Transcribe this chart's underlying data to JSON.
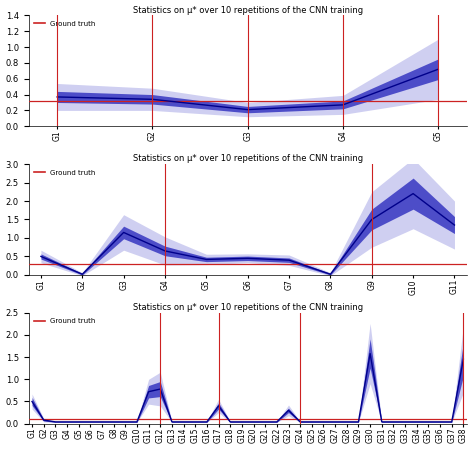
{
  "title": "Statistics on μ* over 10 repetitions of the CNN training",
  "legend_label": "Ground truth",
  "subplot1": {
    "x": [
      0,
      1,
      2,
      3,
      4
    ],
    "xtick_labels": [
      "G1",
      "G2",
      "G3",
      "G4",
      "G5"
    ],
    "mean": [
      0.37,
      0.34,
      0.21,
      0.27,
      0.72
    ],
    "std1": [
      0.07,
      0.06,
      0.04,
      0.05,
      0.13
    ],
    "std2": [
      0.17,
      0.14,
      0.09,
      0.12,
      0.38
    ],
    "ylim": [
      0.0,
      1.4
    ],
    "yticks": [
      0.0,
      0.2,
      0.4,
      0.6,
      0.8,
      1.0,
      1.2,
      1.4
    ],
    "vlines": [
      0,
      1,
      2,
      3,
      4
    ],
    "gt_value": 0.32
  },
  "subplot2": {
    "x": [
      0,
      1,
      2,
      3,
      4,
      5,
      6,
      7,
      8,
      9,
      10
    ],
    "xtick_labels": [
      "G1",
      "G2",
      "G3",
      "G4",
      "G5",
      "G6",
      "G7",
      "G8",
      "G9",
      "G10",
      "G11"
    ],
    "mean": [
      0.5,
      0.02,
      1.15,
      0.65,
      0.42,
      0.45,
      0.4,
      0.02,
      1.5,
      2.2,
      1.35
    ],
    "std1": [
      0.07,
      0.02,
      0.17,
      0.13,
      0.06,
      0.06,
      0.06,
      0.02,
      0.28,
      0.42,
      0.23
    ],
    "std2": [
      0.17,
      0.04,
      0.48,
      0.38,
      0.14,
      0.12,
      0.14,
      0.04,
      0.75,
      0.95,
      0.65
    ],
    "ylim": [
      0.0,
      3.0
    ],
    "yticks": [
      0.0,
      0.5,
      1.0,
      1.5,
      2.0,
      2.5,
      3.0
    ],
    "vlines": [
      3,
      8
    ],
    "gt_value": 0.3
  },
  "subplot3": {
    "x": [
      0,
      1,
      2,
      3,
      4,
      5,
      6,
      7,
      8,
      9,
      10,
      11,
      12,
      13,
      14,
      15,
      16,
      17,
      18,
      19,
      20,
      21,
      22,
      23,
      24,
      25,
      26,
      27,
      28,
      29,
      30,
      31,
      32,
      33,
      34,
      35,
      36,
      37
    ],
    "xtick_labels": [
      "G1",
      "G2",
      "G3",
      "G4",
      "G5",
      "G6",
      "G7",
      "G8",
      "G9",
      "G10",
      "G11",
      "G12",
      "G13",
      "G14",
      "G15",
      "G16",
      "G17",
      "G18",
      "G19",
      "G20",
      "G21",
      "G22",
      "G23",
      "G24",
      "G25",
      "G26",
      "G27",
      "G28",
      "G29",
      "G30",
      "G31",
      "G32",
      "G33",
      "G34",
      "G35",
      "G36",
      "G37",
      "G38"
    ],
    "mean": [
      0.5,
      0.08,
      0.04,
      0.04,
      0.04,
      0.04,
      0.04,
      0.04,
      0.04,
      0.04,
      0.72,
      0.78,
      0.04,
      0.04,
      0.04,
      0.04,
      0.4,
      0.04,
      0.04,
      0.04,
      0.04,
      0.04,
      0.3,
      0.04,
      0.04,
      0.04,
      0.04,
      0.04,
      0.04,
      1.58,
      0.04,
      0.04,
      0.04,
      0.04,
      0.04,
      0.04,
      0.04,
      1.45
    ],
    "std1": [
      0.09,
      0.02,
      0.01,
      0.01,
      0.01,
      0.01,
      0.01,
      0.01,
      0.01,
      0.01,
      0.14,
      0.17,
      0.01,
      0.01,
      0.01,
      0.01,
      0.07,
      0.01,
      0.01,
      0.01,
      0.01,
      0.01,
      0.05,
      0.01,
      0.01,
      0.01,
      0.01,
      0.01,
      0.01,
      0.33,
      0.01,
      0.01,
      0.01,
      0.01,
      0.01,
      0.01,
      0.01,
      0.38
    ],
    "std2": [
      0.17,
      0.04,
      0.01,
      0.01,
      0.01,
      0.01,
      0.01,
      0.01,
      0.01,
      0.01,
      0.28,
      0.38,
      0.01,
      0.01,
      0.01,
      0.01,
      0.15,
      0.01,
      0.01,
      0.01,
      0.01,
      0.01,
      0.12,
      0.01,
      0.01,
      0.01,
      0.01,
      0.01,
      0.01,
      0.68,
      0.01,
      0.01,
      0.01,
      0.01,
      0.01,
      0.01,
      0.01,
      0.75
    ],
    "ylim": [
      0.0,
      2.5
    ],
    "yticks": [
      0.0,
      0.5,
      1.0,
      1.5,
      2.0,
      2.5
    ],
    "vlines": [
      11,
      16,
      23,
      37
    ],
    "gt_value": 0.1
  },
  "color_mean": "#0000cd",
  "color_std1_fill": "#2222bb",
  "color_std2_fill": "#8888dd",
  "alpha_std1": 0.75,
  "alpha_std2": 0.4,
  "color_vline": "#cc2222",
  "color_gt": "#cc2222",
  "bg_color": "#ffffff",
  "title_fontsize": 6.0,
  "tick_fontsize": 5.5,
  "ytick_fontsize": 6.0
}
